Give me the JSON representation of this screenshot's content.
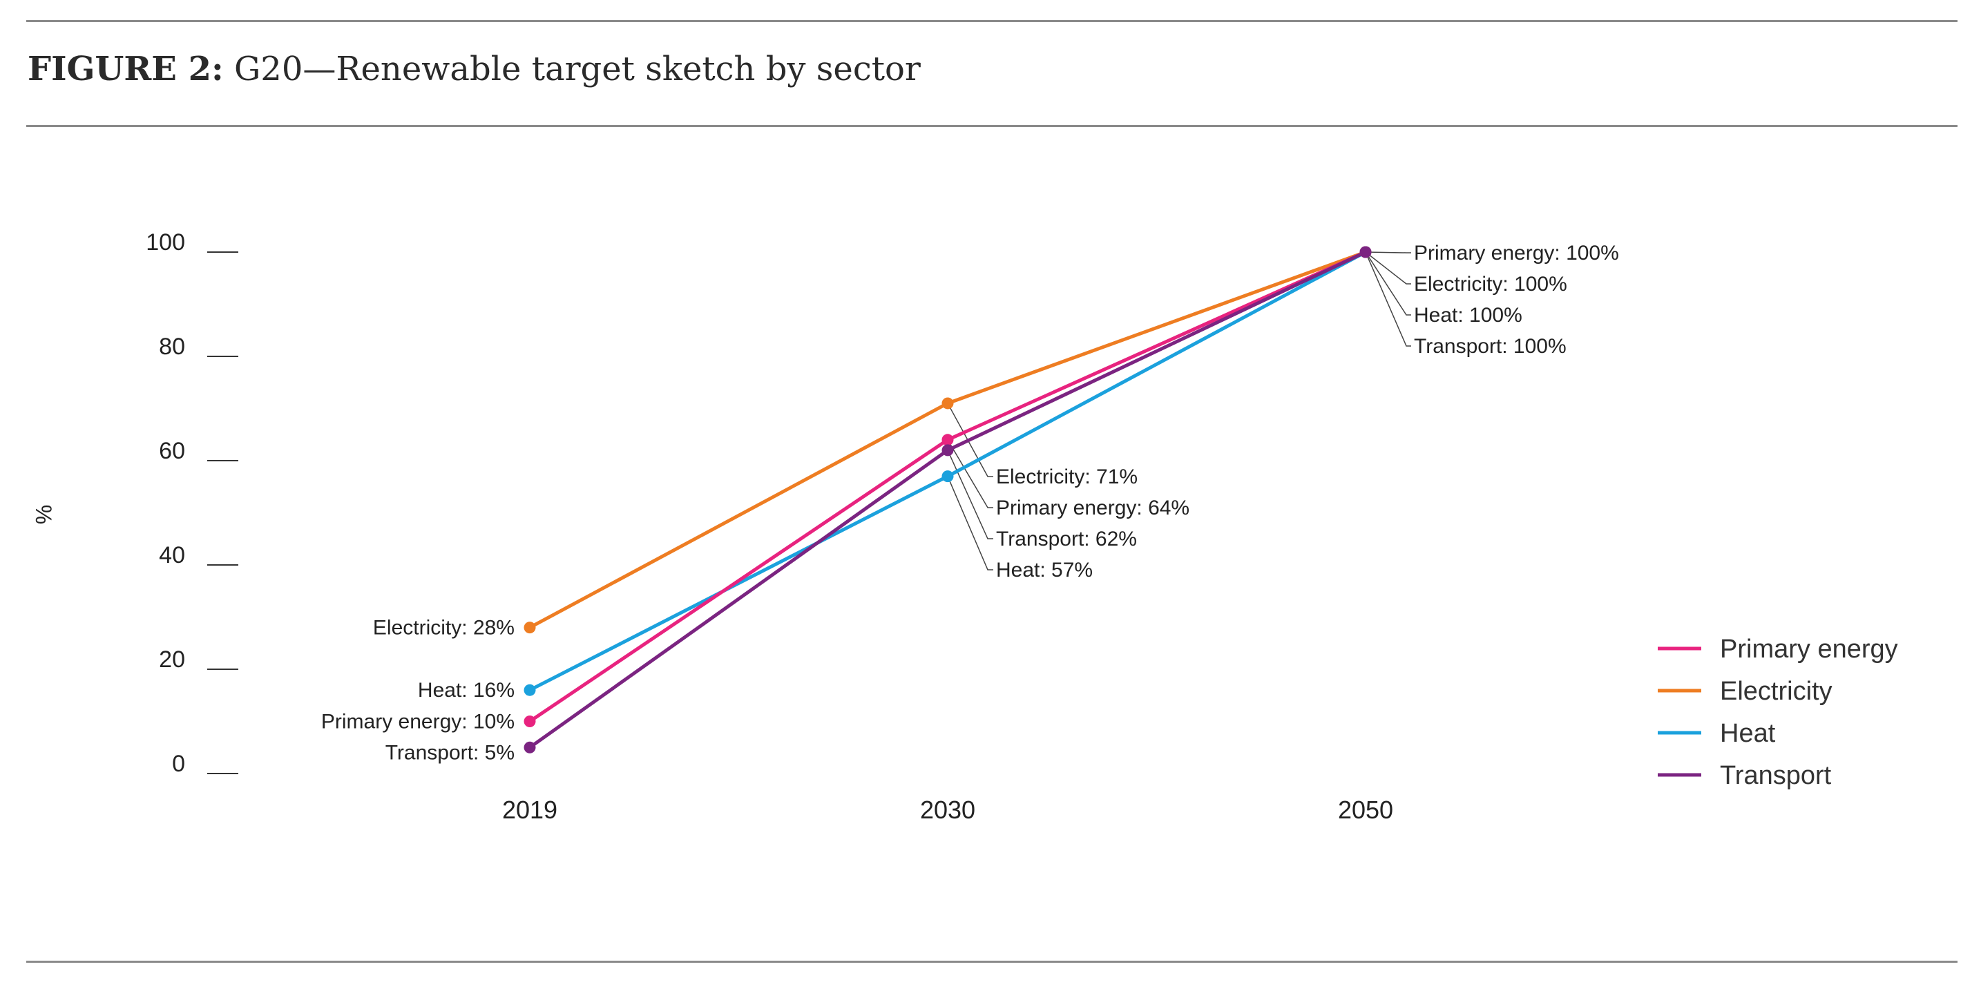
{
  "figure": {
    "label": "FIGURE 2:",
    "title": "G20—Renewable target sketch by sector"
  },
  "chart_data": {
    "type": "line",
    "title": "G20—Renewable target sketch by sector",
    "xlabel": "",
    "ylabel": "%",
    "ylim": [
      0,
      100
    ],
    "yticks": [
      "0",
      "20",
      "40",
      "60",
      "80",
      "100"
    ],
    "categories": [
      "2019",
      "2030",
      "2050"
    ],
    "legend_position": "right",
    "grid": false,
    "series": [
      {
        "name": "Primary energy",
        "color": "#e8237f",
        "values": [
          10,
          64,
          100
        ],
        "labels": [
          "Primary energy: 10%",
          "Primary energy: 64%",
          "Primary energy: 100%"
        ]
      },
      {
        "name": "Electricity",
        "color": "#ee7d22",
        "values": [
          28,
          71,
          100
        ],
        "labels": [
          "Electricity: 28%",
          "Electricity: 71%",
          "Electricity: 100%"
        ]
      },
      {
        "name": "Heat",
        "color": "#1ba1dd",
        "values": [
          16,
          57,
          100
        ],
        "labels": [
          "Heat: 16%",
          "Heat: 57%",
          "Heat: 100%"
        ]
      },
      {
        "name": "Transport",
        "color": "#7b2481",
        "values": [
          5,
          62,
          100
        ],
        "labels": [
          "Transport: 5%",
          "Transport: 62%",
          "Transport: 100%"
        ]
      }
    ]
  }
}
